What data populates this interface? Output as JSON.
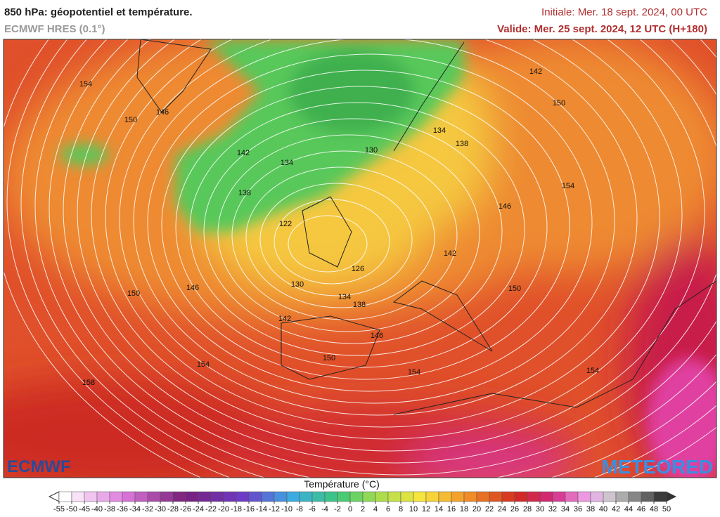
{
  "header": {
    "title": "850 hPa: géopotentiel et température.",
    "model": "ECMWF HRES (0.1°)",
    "initial": "Initiale: Mer. 18 sept. 2024, 00 UTC",
    "valid": "Valide: Mer. 25 sept. 2024, 12 UTC (H+180)"
  },
  "map": {
    "contour_labels": [
      154,
      146,
      150,
      142,
      134,
      138,
      130,
      134,
      138,
      142,
      150,
      154,
      146,
      122,
      142,
      126,
      150,
      146,
      130,
      134,
      138,
      142,
      146,
      150,
      154,
      154,
      150,
      154,
      158
    ]
  },
  "logos": {
    "left": "ECMWF",
    "right": "METEORED"
  },
  "colorbar": {
    "title": "Température (°C)",
    "ticks": [
      -55,
      -50,
      -45,
      -40,
      -38,
      -36,
      -34,
      -32,
      -30,
      -28,
      -26,
      -24,
      -22,
      -20,
      -18,
      -16,
      -14,
      -12,
      -10,
      -8,
      -6,
      -4,
      -2,
      0,
      2,
      4,
      6,
      8,
      10,
      12,
      14,
      16,
      18,
      20,
      22,
      24,
      26,
      28,
      30,
      32,
      34,
      36,
      38,
      40,
      42,
      44,
      46,
      48,
      50
    ]
  }
}
